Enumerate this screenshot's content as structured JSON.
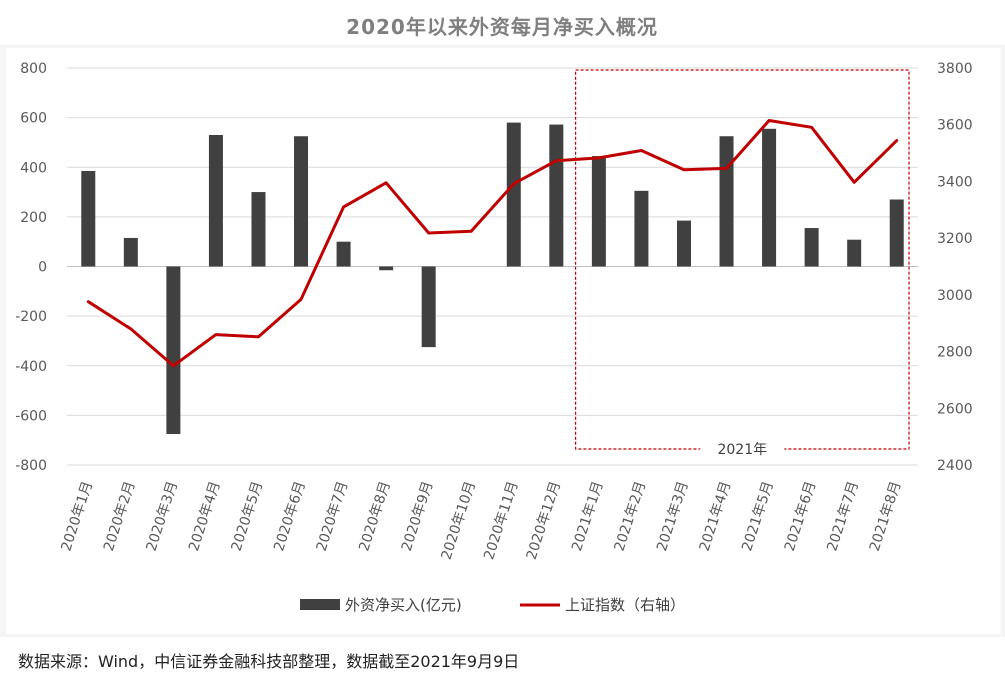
{
  "chart_data": {
    "type": "bar",
    "title": "2020年以来外资每月净买入概况",
    "categories": [
      "2020年1月",
      "2020年2月",
      "2020年3月",
      "2020年4月",
      "2020年5月",
      "2020年6月",
      "2020年7月",
      "2020年8月",
      "2020年9月",
      "2020年10月",
      "2020年11月",
      "2020年12月",
      "2021年1月",
      "2021年2月",
      "2021年3月",
      "2021年4月",
      "2021年5月",
      "2021年6月",
      "2021年7月",
      "2021年8月"
    ],
    "series": [
      {
        "name": "外资净买入(亿元)",
        "type": "bar",
        "axis": "left",
        "color": "#404040",
        "values": [
          385,
          115,
          -675,
          530,
          300,
          525,
          100,
          -15,
          -325,
          0,
          580,
          572,
          445,
          305,
          185,
          525,
          555,
          155,
          108,
          270
        ]
      },
      {
        "name": "上证指数（右轴）",
        "type": "line",
        "axis": "right",
        "color": "#c00000",
        "values": [
          2976,
          2880,
          2750,
          2860,
          2852,
          2984,
          3310,
          3395,
          3218,
          3224,
          3392,
          3473,
          3483,
          3509,
          3441,
          3446,
          3615,
          3591,
          3397,
          3544
        ]
      }
    ],
    "y_left": {
      "ticks": [
        800,
        600,
        400,
        200,
        0,
        -200,
        -400,
        -600,
        -800
      ],
      "ylim": [
        -800,
        800
      ]
    },
    "y_right": {
      "ticks": [
        3800,
        3600,
        3400,
        3200,
        3000,
        2800,
        2600,
        2400
      ],
      "ylim": [
        2400,
        3800
      ]
    },
    "grid": true,
    "legend_position": "bottom",
    "annotation": {
      "label": "2021年",
      "from_category": "2021年1月",
      "to_category": "2021年8月",
      "style": "dashed-box",
      "color": "#c00000"
    },
    "source": "数据来源：Wind，中信证券金融科技部整理，数据截至2021年9月9日"
  }
}
